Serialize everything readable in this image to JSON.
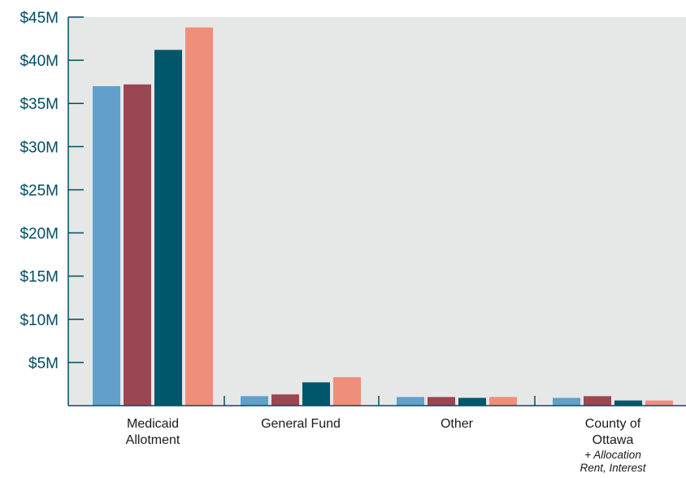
{
  "chart_data": {
    "type": "bar",
    "title": "",
    "xlabel": "",
    "ylabel": "",
    "ylim": [
      0,
      45
    ],
    "yticks": [
      {
        "value": 5,
        "label": "$5M"
      },
      {
        "value": 10,
        "label": "$10M"
      },
      {
        "value": 15,
        "label": "$15M"
      },
      {
        "value": 20,
        "label": "$20M"
      },
      {
        "value": 25,
        "label": "$25M"
      },
      {
        "value": 30,
        "label": "$30M"
      },
      {
        "value": 35,
        "label": "$35M"
      },
      {
        "value": 40,
        "label": "$40M"
      },
      {
        "value": 45,
        "label": "$45M"
      }
    ],
    "grid": false,
    "legend": "none",
    "categories": [
      {
        "lines": [
          "Medicaid",
          "Allotment"
        ],
        "sublines": []
      },
      {
        "lines": [
          "General Fund"
        ],
        "sublines": []
      },
      {
        "lines": [
          "Other"
        ],
        "sublines": []
      },
      {
        "lines": [
          "County of",
          "Ottawa"
        ],
        "sublines": [
          "+ Allocation",
          "Rent, Interest"
        ]
      }
    ],
    "series": [
      {
        "color": "#62a0ca",
        "values": [
          37.0,
          1.1,
          1.0,
          0.9
        ]
      },
      {
        "color": "#9b4653",
        "values": [
          37.2,
          1.3,
          1.0,
          1.1
        ]
      },
      {
        "color": "#00566b",
        "values": [
          41.2,
          2.7,
          0.9,
          0.6
        ]
      },
      {
        "color": "#ef8f7b",
        "values": [
          43.8,
          3.3,
          1.0,
          0.6
        ]
      }
    ],
    "colors": {
      "plot_background": "#e6e7e7",
      "axis": "#004d63",
      "tick_text": "#004d63"
    }
  }
}
